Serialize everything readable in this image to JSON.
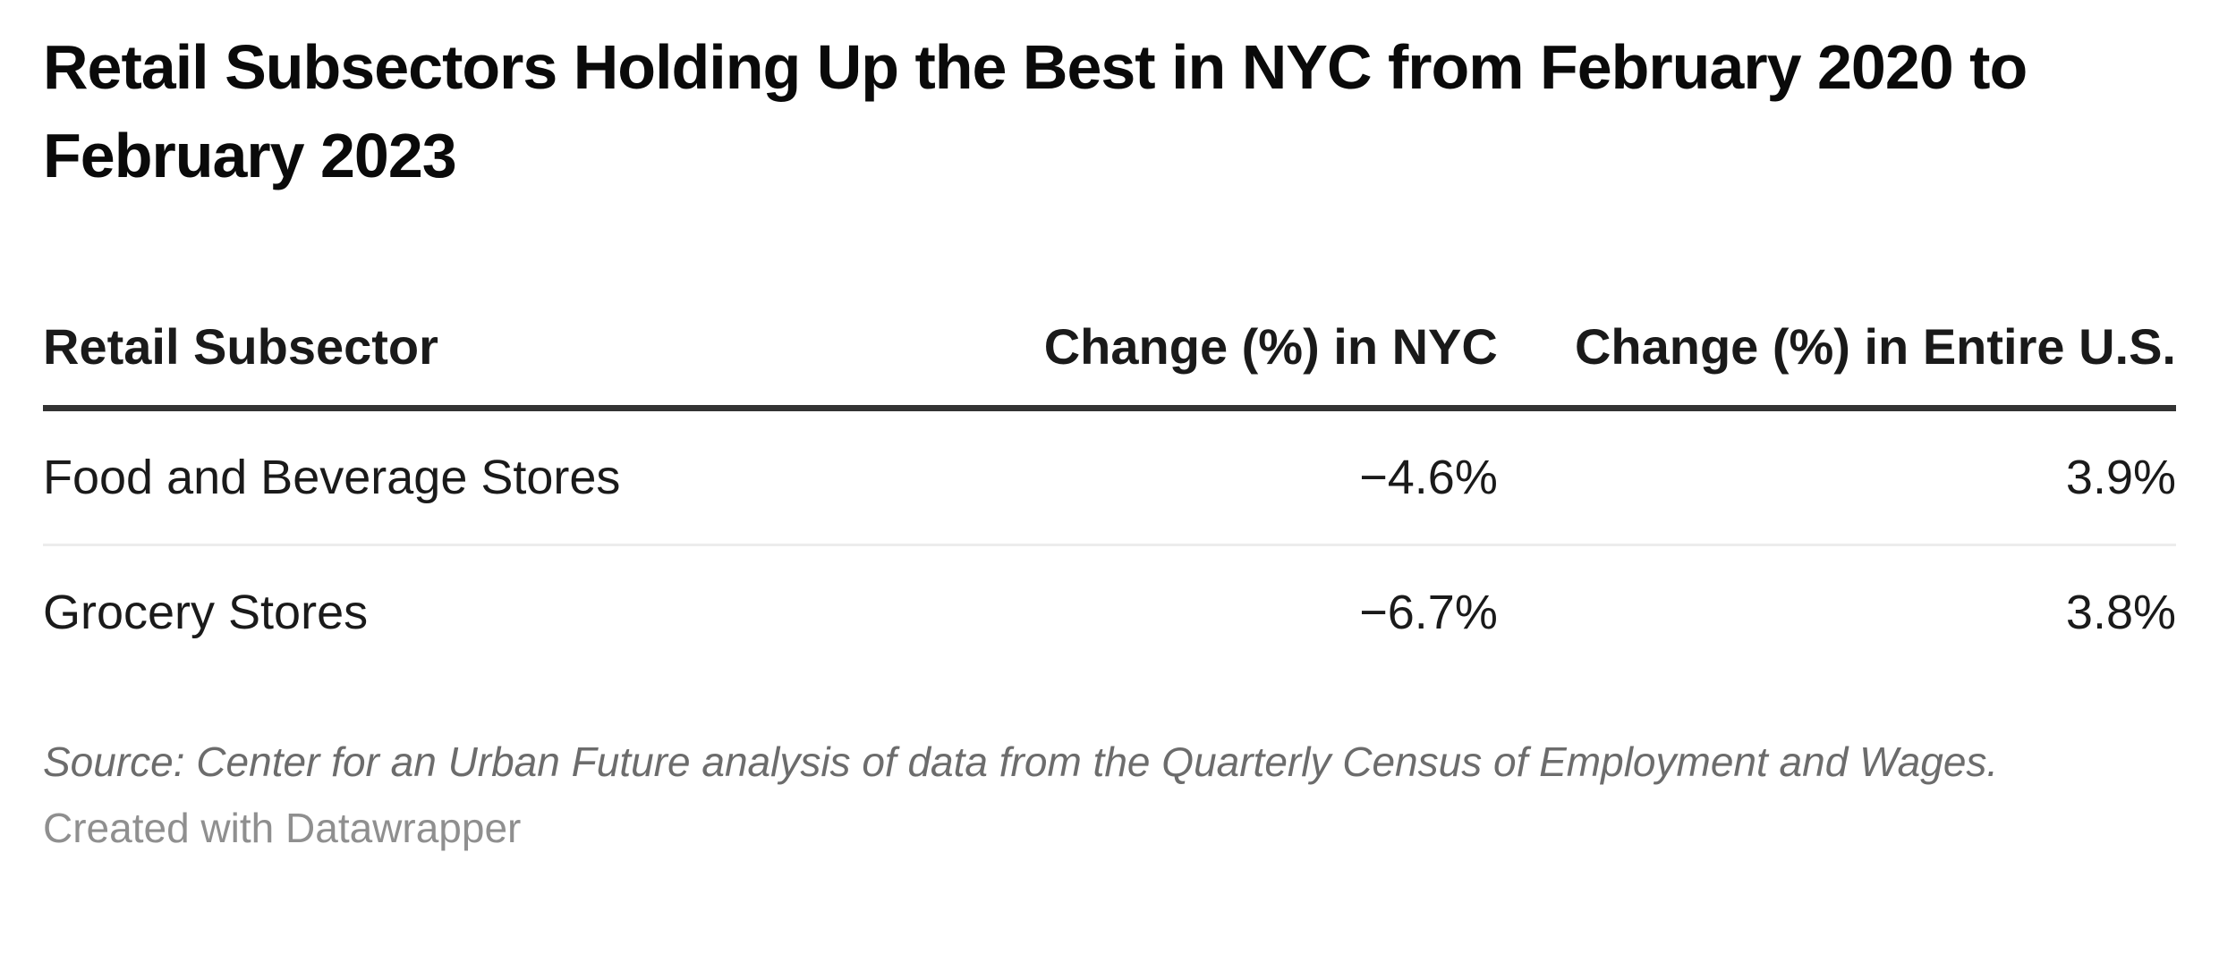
{
  "title": "Retail Subsectors Holding Up the Best in NYC from February 2020 to February 2023",
  "table": {
    "columns": [
      {
        "label": "Retail Subsector",
        "align": "left"
      },
      {
        "label": "Change (%) in NYC",
        "align": "right"
      },
      {
        "label": "Change (%) in Entire U.S.",
        "align": "right"
      }
    ],
    "rows": [
      [
        "Food and Beverage Stores",
        "−4.6%",
        "3.9%"
      ],
      [
        "Grocery Stores",
        "−6.7%",
        "3.8%"
      ]
    ]
  },
  "footer": {
    "source": "Source: Center for an Urban Future analysis of data from the Quarterly Census of Employment and Wages.",
    "created": "Created with Datawrapper"
  },
  "colors": {
    "title_text": "#0a0a0a",
    "table_text": "#1a1a1a",
    "header_border": "#333333",
    "row_divider": "#ececec",
    "source_text": "#6c6c6c",
    "created_text": "#8f8f8f",
    "background": "#ffffff"
  },
  "chart_data": {
    "type": "table",
    "title": "Retail Subsectors Holding Up the Best in NYC from February 2020 to February 2023",
    "columns": [
      "Retail Subsector",
      "Change (%) in NYC",
      "Change (%) in Entire U.S."
    ],
    "rows": [
      [
        "Food and Beverage Stores",
        -4.6,
        3.9
      ],
      [
        "Grocery Stores",
        -6.7,
        3.8
      ]
    ],
    "units": "%",
    "source": "Source: Center for an Urban Future analysis of data from the Quarterly Census of Employment and Wages.",
    "layout_hints": {
      "first_column_align": "left",
      "value_columns_align": "right",
      "header_rule": "thick-dark",
      "row_rule": "thin-light"
    }
  }
}
